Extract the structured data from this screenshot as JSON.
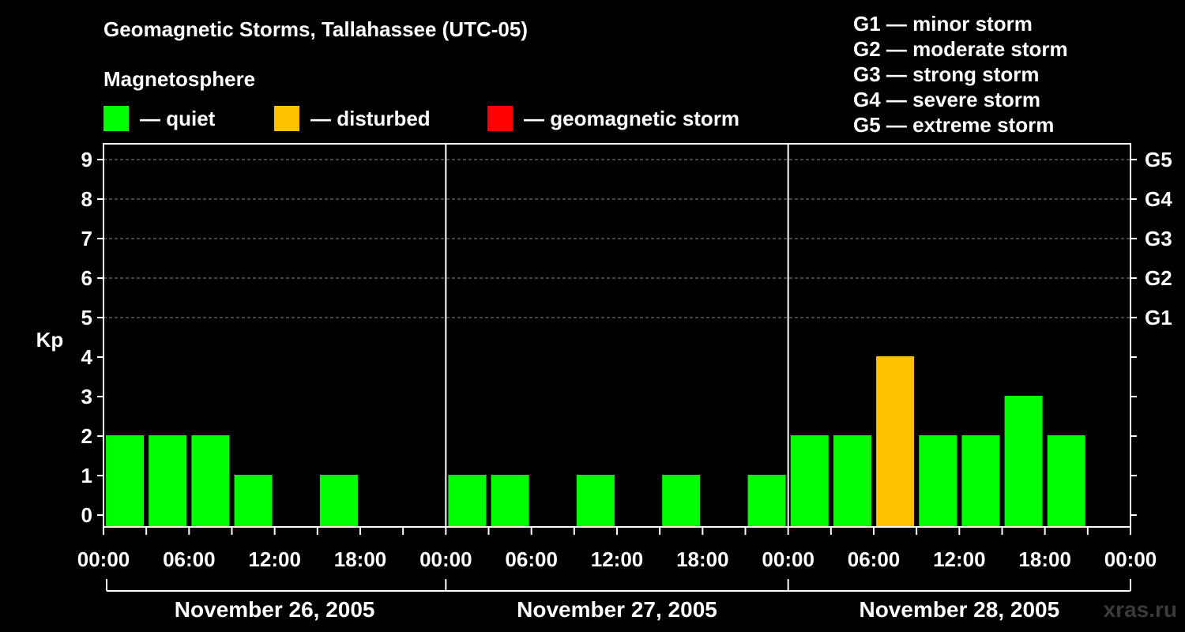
{
  "title": "Geomagnetic Storms, Tallahassee (UTC-05)",
  "magnetosphere": {
    "title": "Magnetosphere",
    "items": [
      {
        "label": "— quiet",
        "color": "#00ff00"
      },
      {
        "label": "— disturbed",
        "color": "#ffc000"
      },
      {
        "label": "— geomagnetic storm",
        "color": "#ff0000"
      }
    ]
  },
  "g_legend": [
    "G1 — minor storm",
    "G2 — moderate storm",
    "G3 — strong storm",
    "G4 — severe storm",
    "G5 — extreme storm"
  ],
  "watermark": "xras.ru",
  "chart_data": {
    "type": "bar",
    "ylabel": "Kp",
    "ylim": [
      0,
      9
    ],
    "y_ticks": [
      "0",
      "1",
      "2",
      "3",
      "4",
      "5",
      "6",
      "7",
      "8",
      "9"
    ],
    "right_ticks": [
      {
        "value": 5,
        "label": "G1"
      },
      {
        "value": 6,
        "label": "G2"
      },
      {
        "value": 7,
        "label": "G3"
      },
      {
        "value": 8,
        "label": "G4"
      },
      {
        "value": 9,
        "label": "G5"
      }
    ],
    "grid": "dashed horizontal at Kp 5-9",
    "x_tick_labels": [
      "00:00",
      "06:00",
      "12:00",
      "18:00",
      "00:00",
      "06:00",
      "12:00",
      "18:00",
      "00:00",
      "06:00",
      "12:00",
      "18:00",
      "00:00"
    ],
    "days": [
      "November 26, 2005",
      "November 27, 2005",
      "November 28, 2005"
    ],
    "colors": {
      "quiet": "#00ff00",
      "disturbed": "#ffc000",
      "storm": "#ff0000"
    },
    "intervals": [
      "00-03",
      "03-06",
      "06-09",
      "09-12",
      "12-15",
      "15-18",
      "18-21",
      "21-24"
    ],
    "series": [
      {
        "day": "November 26, 2005",
        "kp": [
          2,
          2,
          2,
          1,
          null,
          1,
          null,
          null
        ]
      },
      {
        "day": "November 27, 2005",
        "kp": [
          1,
          1,
          null,
          1,
          null,
          1,
          null,
          1
        ]
      },
      {
        "day": "November 28, 2005",
        "kp": [
          2,
          2,
          4,
          2,
          2,
          3,
          2,
          null
        ]
      }
    ]
  }
}
